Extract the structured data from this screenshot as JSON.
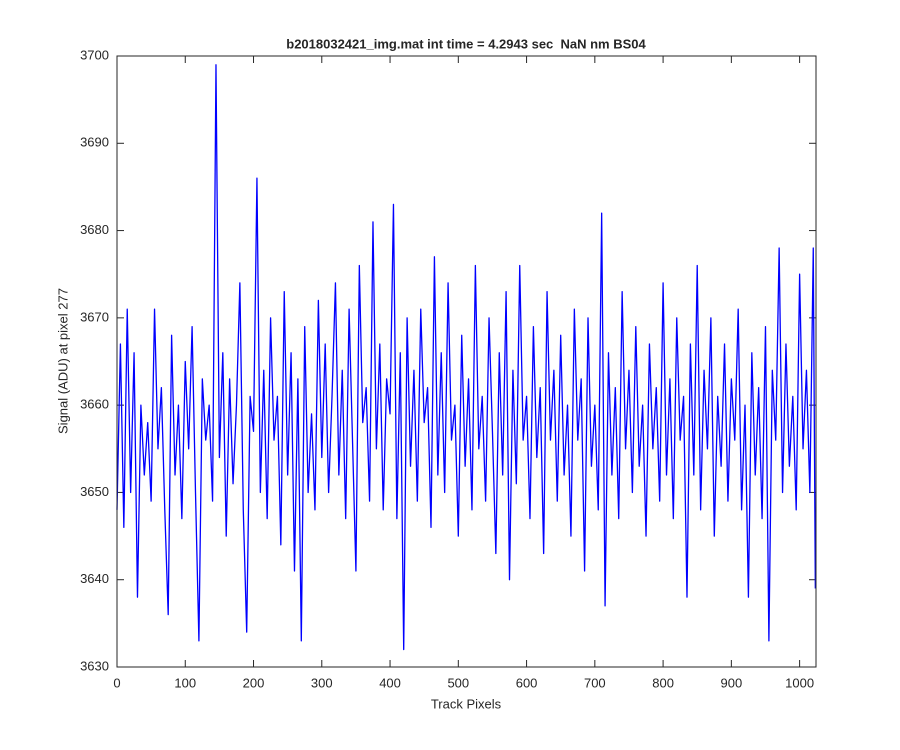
{
  "chart_data": {
    "type": "line",
    "title": "b2018032421_img.mat int time = 4.2943 sec  NaN nm BS04",
    "xlabel": "Track Pixels",
    "ylabel": "Signal (ADU) at pixel 277",
    "xlim": [
      0,
      1024
    ],
    "ylim": [
      3630,
      3700
    ],
    "xticks": [
      0,
      100,
      200,
      300,
      400,
      500,
      600,
      700,
      800,
      900,
      1000
    ],
    "yticks": [
      3630,
      3640,
      3650,
      3660,
      3670,
      3680,
      3690,
      3700
    ],
    "grid": false,
    "series": [
      {
        "color": "#0000ff",
        "x": [
          0,
          5,
          10,
          15,
          20,
          25,
          30,
          35,
          40,
          45,
          50,
          55,
          60,
          65,
          70,
          75,
          80,
          85,
          90,
          95,
          100,
          105,
          110,
          115,
          120,
          125,
          130,
          135,
          140,
          145,
          150,
          155,
          160,
          165,
          170,
          175,
          180,
          185,
          190,
          195,
          200,
          205,
          210,
          215,
          220,
          225,
          230,
          235,
          240,
          245,
          250,
          255,
          260,
          265,
          270,
          275,
          280,
          285,
          290,
          295,
          300,
          305,
          310,
          315,
          320,
          325,
          330,
          335,
          340,
          345,
          350,
          355,
          360,
          365,
          370,
          375,
          380,
          385,
          390,
          395,
          400,
          405,
          410,
          415,
          420,
          425,
          430,
          435,
          440,
          445,
          450,
          455,
          460,
          465,
          470,
          475,
          480,
          485,
          490,
          495,
          500,
          505,
          510,
          515,
          520,
          525,
          530,
          535,
          540,
          545,
          550,
          555,
          560,
          565,
          570,
          575,
          580,
          585,
          590,
          595,
          600,
          605,
          610,
          615,
          620,
          625,
          630,
          635,
          640,
          645,
          650,
          655,
          660,
          665,
          670,
          675,
          680,
          685,
          690,
          695,
          700,
          705,
          710,
          715,
          720,
          725,
          730,
          735,
          740,
          745,
          750,
          755,
          760,
          765,
          770,
          775,
          780,
          785,
          790,
          795,
          800,
          805,
          810,
          815,
          820,
          825,
          830,
          835,
          840,
          845,
          850,
          855,
          860,
          865,
          870,
          875,
          880,
          885,
          890,
          895,
          900,
          905,
          910,
          915,
          920,
          925,
          930,
          935,
          940,
          945,
          950,
          955,
          960,
          965,
          970,
          975,
          980,
          985,
          990,
          995,
          1000,
          1005,
          1010,
          1015,
          1020,
          1023
        ],
        "values": [
          3648,
          3667,
          3646,
          3671,
          3650,
          3666,
          3638,
          3660,
          3652,
          3658,
          3649,
          3671,
          3655,
          3662,
          3648,
          3636,
          3668,
          3652,
          3660,
          3647,
          3665,
          3655,
          3669,
          3650,
          3633,
          3663,
          3656,
          3660,
          3649,
          3699,
          3654,
          3666,
          3645,
          3663,
          3651,
          3660,
          3674,
          3648,
          3634,
          3661,
          3657,
          3686,
          3650,
          3664,
          3647,
          3670,
          3656,
          3661,
          3644,
          3673,
          3652,
          3666,
          3641,
          3663,
          3633,
          3669,
          3650,
          3659,
          3648,
          3672,
          3654,
          3667,
          3650,
          3661,
          3674,
          3652,
          3664,
          3647,
          3671,
          3656,
          3641,
          3676,
          3658,
          3662,
          3649,
          3681,
          3655,
          3667,
          3648,
          3663,
          3659,
          3683,
          3647,
          3666,
          3632,
          3670,
          3653,
          3664,
          3649,
          3671,
          3658,
          3662,
          3646,
          3677,
          3652,
          3666,
          3650,
          3674,
          3656,
          3660,
          3645,
          3668,
          3653,
          3663,
          3648,
          3676,
          3655,
          3661,
          3649,
          3670,
          3657,
          3643,
          3666,
          3652,
          3673,
          3640,
          3664,
          3651,
          3676,
          3656,
          3661,
          3647,
          3669,
          3654,
          3662,
          3643,
          3673,
          3656,
          3664,
          3649,
          3668,
          3652,
          3660,
          3645,
          3671,
          3656,
          3663,
          3641,
          3670,
          3653,
          3660,
          3648,
          3682,
          3637,
          3666,
          3652,
          3662,
          3647,
          3673,
          3655,
          3664,
          3650,
          3669,
          3653,
          3660,
          3645,
          3667,
          3655,
          3662,
          3649,
          3674,
          3652,
          3663,
          3647,
          3670,
          3656,
          3661,
          3638,
          3667,
          3652,
          3676,
          3648,
          3664,
          3655,
          3670,
          3645,
          3661,
          3653,
          3667,
          3649,
          3663,
          3656,
          3671,
          3648,
          3660,
          3638,
          3666,
          3652,
          3662,
          3647,
          3669,
          3633,
          3664,
          3656,
          3678,
          3650,
          3667,
          3653,
          3661,
          3648,
          3675,
          3655,
          3664,
          3650,
          3678,
          3639
        ]
      }
    ]
  }
}
